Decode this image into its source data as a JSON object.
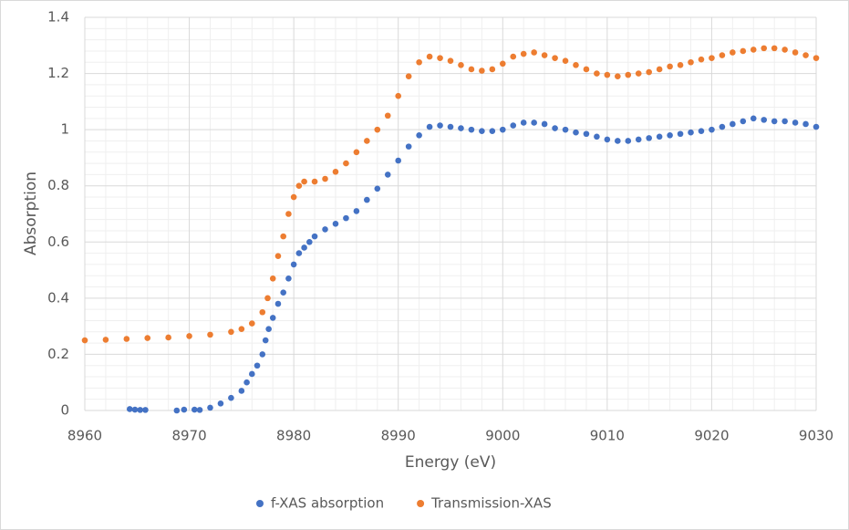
{
  "chart_data": {
    "type": "scatter",
    "x_label": "Energy (eV)",
    "y_label": "Absorption",
    "xlim": [
      8960,
      9030
    ],
    "xticks": [
      8960,
      8970,
      8980,
      8990,
      9000,
      9010,
      9020,
      9030
    ],
    "ylim": [
      0,
      1.4
    ],
    "yticks": [
      0,
      0.2,
      0.4,
      0.6,
      0.8,
      1,
      1.2,
      1.4
    ],
    "grid": true,
    "legend": "bottom",
    "series": [
      {
        "name": "f-XAS absorption",
        "color": "#4472c4",
        "x": [
          8964.3,
          8964.8,
          8965.3,
          8965.8,
          8968.8,
          8969.5,
          8970.5,
          8971,
          8972,
          8973,
          8974,
          8975,
          8975.5,
          8976,
          8976.5,
          8977,
          8977.3,
          8977.6,
          8978,
          8978.5,
          8979,
          8979.5,
          8980,
          8980.5,
          8981,
          8981.5,
          8982,
          8983,
          8984,
          8985,
          8986,
          8987,
          8988,
          8989,
          8990,
          8991,
          8992,
          8993,
          8994,
          8995,
          8996,
          8997,
          8998,
          8999,
          9000,
          9001,
          9002,
          9003,
          9004,
          9005,
          9006,
          9007,
          9008,
          9009,
          9010,
          9011,
          9012,
          9013,
          9014,
          9015,
          9016,
          9017,
          9018,
          9019,
          9020,
          9021,
          9022,
          9023,
          9024,
          9025,
          9026,
          9027,
          9028,
          9029,
          9030
        ],
        "values": [
          0.005,
          0.003,
          0.002,
          0.002,
          0.0,
          0.003,
          0.003,
          0.002,
          0.01,
          0.025,
          0.045,
          0.07,
          0.1,
          0.13,
          0.16,
          0.2,
          0.25,
          0.29,
          0.33,
          0.38,
          0.42,
          0.47,
          0.52,
          0.56,
          0.58,
          0.6,
          0.62,
          0.645,
          0.665,
          0.685,
          0.71,
          0.75,
          0.79,
          0.84,
          0.89,
          0.94,
          0.98,
          1.01,
          1.015,
          1.01,
          1.005,
          1.0,
          0.995,
          0.995,
          1.0,
          1.015,
          1.025,
          1.025,
          1.02,
          1.005,
          1.0,
          0.99,
          0.985,
          0.975,
          0.965,
          0.96,
          0.96,
          0.965,
          0.97,
          0.975,
          0.98,
          0.985,
          0.99,
          0.995,
          1.0,
          1.01,
          1.02,
          1.03,
          1.04,
          1.035,
          1.03,
          1.03,
          1.025,
          1.02,
          1.01
        ]
      },
      {
        "name": "Transmission-XAS",
        "color": "#ed7d31",
        "x": [
          8960,
          8962,
          8964,
          8966,
          8968,
          8970,
          8972,
          8974,
          8975,
          8976,
          8977,
          8977.5,
          8978,
          8978.5,
          8979,
          8979.5,
          8980,
          8980.5,
          8981,
          8982,
          8983,
          8984,
          8985,
          8986,
          8987,
          8988,
          8989,
          8990,
          8991,
          8992,
          8993,
          8994,
          8995,
          8996,
          8997,
          8998,
          8999,
          9000,
          9001,
          9002,
          9003,
          9004,
          9005,
          9006,
          9007,
          9008,
          9009,
          9010,
          9011,
          9012,
          9013,
          9014,
          9015,
          9016,
          9017,
          9018,
          9019,
          9020,
          9021,
          9022,
          9023,
          9024,
          9025,
          9026,
          9027,
          9028,
          9029,
          9030
        ],
        "values": [
          0.25,
          0.252,
          0.255,
          0.258,
          0.26,
          0.265,
          0.27,
          0.28,
          0.29,
          0.31,
          0.35,
          0.4,
          0.47,
          0.55,
          0.62,
          0.7,
          0.76,
          0.8,
          0.815,
          0.815,
          0.825,
          0.85,
          0.88,
          0.92,
          0.96,
          1.0,
          1.05,
          1.12,
          1.19,
          1.24,
          1.26,
          1.255,
          1.245,
          1.23,
          1.215,
          1.21,
          1.215,
          1.235,
          1.26,
          1.27,
          1.275,
          1.265,
          1.255,
          1.245,
          1.23,
          1.215,
          1.2,
          1.195,
          1.19,
          1.195,
          1.2,
          1.205,
          1.215,
          1.225,
          1.23,
          1.24,
          1.25,
          1.255,
          1.265,
          1.275,
          1.28,
          1.285,
          1.29,
          1.29,
          1.285,
          1.275,
          1.265,
          1.255
        ]
      }
    ]
  }
}
